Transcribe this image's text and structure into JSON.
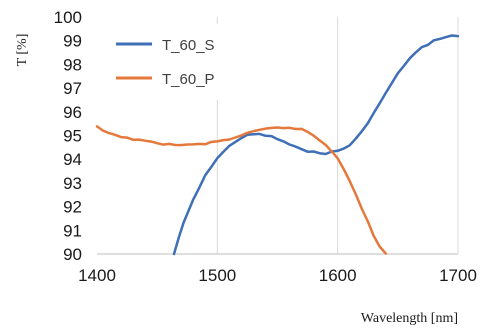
{
  "chart_data": {
    "type": "line",
    "title": "",
    "xlabel": "Wavelength [nm]",
    "ylabel": "T [%]",
    "xlim": [
      1400,
      1700
    ],
    "ylim": [
      90,
      100
    ],
    "x_ticks": [
      "1400",
      "1500",
      "1600",
      "1700"
    ],
    "y_ticks": [
      "90",
      "91",
      "92",
      "93",
      "94",
      "95",
      "96",
      "97",
      "98",
      "99",
      "100"
    ],
    "grid": "vertical",
    "legend_position": "top-left",
    "series": [
      {
        "name": "T_60_S",
        "color": "#3f6fb7",
        "x": [
          1464,
          1468,
          1472,
          1476,
          1480,
          1485,
          1490,
          1495,
          1500,
          1505,
          1510,
          1515,
          1520,
          1525,
          1530,
          1535,
          1540,
          1545,
          1550,
          1555,
          1560,
          1565,
          1570,
          1575,
          1580,
          1585,
          1590,
          1595,
          1600,
          1605,
          1610,
          1615,
          1620,
          1625,
          1630,
          1635,
          1640,
          1645,
          1650,
          1655,
          1660,
          1665,
          1670,
          1675,
          1680,
          1685,
          1690,
          1695,
          1700
        ],
        "y": [
          90.0,
          90.7,
          91.3,
          91.8,
          92.3,
          92.8,
          93.3,
          93.7,
          94.05,
          94.3,
          94.55,
          94.75,
          94.9,
          95.0,
          95.05,
          95.05,
          95.0,
          94.95,
          94.85,
          94.75,
          94.6,
          94.5,
          94.45,
          94.35,
          94.3,
          94.25,
          94.25,
          94.3,
          94.35,
          94.45,
          94.6,
          94.85,
          95.15,
          95.55,
          95.95,
          96.35,
          96.8,
          97.2,
          97.6,
          97.95,
          98.25,
          98.5,
          98.7,
          98.85,
          99.0,
          99.1,
          99.15,
          99.2,
          99.2
        ]
      },
      {
        "name": "T_60_P",
        "color": "#e4793b",
        "x": [
          1400,
          1405,
          1410,
          1415,
          1420,
          1425,
          1430,
          1435,
          1440,
          1445,
          1450,
          1455,
          1460,
          1465,
          1470,
          1475,
          1480,
          1485,
          1490,
          1495,
          1500,
          1505,
          1510,
          1515,
          1520,
          1525,
          1530,
          1535,
          1540,
          1545,
          1550,
          1555,
          1560,
          1565,
          1570,
          1575,
          1580,
          1585,
          1590,
          1595,
          1600,
          1605,
          1610,
          1615,
          1620,
          1625,
          1630,
          1635,
          1640
        ],
        "y": [
          95.35,
          95.2,
          95.1,
          95.0,
          94.95,
          94.9,
          94.85,
          94.8,
          94.75,
          94.72,
          94.7,
          94.65,
          94.62,
          94.6,
          94.6,
          94.6,
          94.62,
          94.63,
          94.65,
          94.7,
          94.75,
          94.8,
          94.85,
          94.92,
          95.0,
          95.08,
          95.15,
          95.22,
          95.27,
          95.3,
          95.32,
          95.33,
          95.33,
          95.3,
          95.25,
          95.15,
          95.0,
          94.8,
          94.6,
          94.35,
          94.05,
          93.6,
          93.1,
          92.55,
          91.95,
          91.35,
          90.75,
          90.3,
          90.0
        ]
      }
    ]
  }
}
